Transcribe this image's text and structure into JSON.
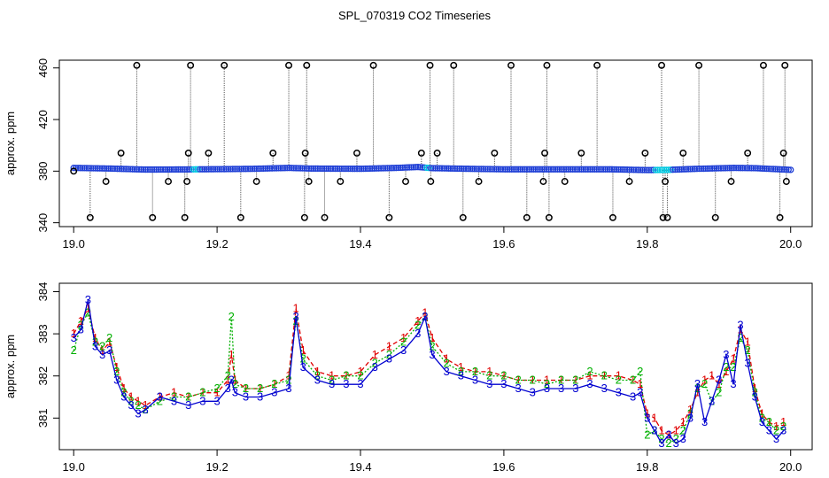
{
  "title": "SPL_070319  CO2 Timeseries",
  "colors": {
    "raw_points": "#1f3fd6",
    "flagged_points": "#00c8e0",
    "spikes": "#000000",
    "series1": "#e00000",
    "series2": "#00b000",
    "series3": "#0000d0"
  },
  "chart_data": [
    {
      "type": "scatter",
      "panel": "top",
      "title": "SPL_070319  CO2 Timeseries",
      "xlabel": "",
      "ylabel": "approx. ppm",
      "xlim": [
        18.98,
        20.03
      ],
      "ylim": [
        337,
        466
      ],
      "x_ticks": [
        "19.0",
        "19.2",
        "19.4",
        "19.6",
        "19.8",
        "20.0"
      ],
      "y_ticks": [
        "340",
        "380",
        "420",
        "460"
      ],
      "baseline_x": [
        19.0,
        19.05,
        19.1,
        19.15,
        19.2,
        19.25,
        19.3,
        19.33,
        19.4,
        19.45,
        19.48,
        19.5,
        19.55,
        19.6,
        19.65,
        19.7,
        19.75,
        19.8,
        19.83,
        19.87,
        19.92,
        19.95,
        20.0
      ],
      "baseline_y": [
        382.5,
        382,
        381.2,
        381.3,
        381.5,
        381.8,
        382.5,
        382,
        381.8,
        382.5,
        383.2,
        382.3,
        381.8,
        381.4,
        381.4,
        381.4,
        381.4,
        380.8,
        381.0,
        381.8,
        382.5,
        382.3,
        381.0
      ],
      "spikes_x": [
        19.0,
        19.023,
        19.045,
        19.066,
        19.088,
        19.11,
        19.132,
        19.155,
        19.158,
        19.16,
        19.163,
        19.188,
        19.21,
        19.233,
        19.255,
        19.278,
        19.3,
        19.322,
        19.323,
        19.325,
        19.328,
        19.35,
        19.372,
        19.395,
        19.418,
        19.44,
        19.463,
        19.485,
        19.497,
        19.498,
        19.507,
        19.53,
        19.543,
        19.565,
        19.587,
        19.61,
        19.632,
        19.655,
        19.657,
        19.66,
        19.663,
        19.685,
        19.708,
        19.73,
        19.752,
        19.775,
        19.797,
        19.82,
        19.822,
        19.825,
        19.828,
        19.85,
        19.872,
        19.895,
        19.917,
        19.94,
        19.962,
        19.985,
        19.99,
        19.992,
        19.994
      ],
      "spikes_y": [
        380,
        344,
        372,
        394,
        462,
        344,
        372,
        344,
        372,
        394,
        462,
        394,
        462,
        344,
        372,
        394,
        462,
        344,
        394,
        462,
        372,
        344,
        372,
        394,
        462,
        344,
        372,
        394,
        462,
        372,
        394,
        462,
        344,
        372,
        394,
        462,
        344,
        372,
        394,
        462,
        344,
        372,
        394,
        462,
        344,
        372,
        394,
        462,
        344,
        372,
        344,
        394,
        462,
        344,
        372,
        394,
        462,
        344,
        394,
        462,
        372
      ]
    },
    {
      "type": "line",
      "panel": "bottom",
      "title": "",
      "xlabel": "",
      "ylabel": "approx. ppm",
      "xlim": [
        18.98,
        20.03
      ],
      "ylim": [
        380.25,
        384.2
      ],
      "x_ticks": [
        "19.0",
        "19.2",
        "19.4",
        "19.6",
        "19.8",
        "20.0"
      ],
      "y_ticks": [
        "381",
        "382",
        "383",
        "384"
      ],
      "series": [
        {
          "name": "1",
          "marker": "1",
          "x": [
            19.0,
            19.01,
            19.02,
            19.03,
            19.04,
            19.05,
            19.06,
            19.07,
            19.08,
            19.09,
            19.1,
            19.12,
            19.14,
            19.16,
            19.18,
            19.2,
            19.215,
            19.22,
            19.225,
            19.24,
            19.26,
            19.28,
            19.3,
            19.31,
            19.32,
            19.34,
            19.36,
            19.38,
            19.4,
            19.42,
            19.44,
            19.46,
            19.48,
            19.49,
            19.5,
            19.52,
            19.54,
            19.56,
            19.58,
            19.6,
            19.62,
            19.64,
            19.66,
            19.68,
            19.7,
            19.72,
            19.74,
            19.76,
            19.78,
            19.79,
            19.8,
            19.81,
            19.82,
            19.83,
            19.84,
            19.85,
            19.86,
            19.87,
            19.88,
            19.89,
            19.9,
            19.91,
            19.92,
            19.93,
            19.94,
            19.95,
            19.96,
            19.97,
            19.98,
            19.99
          ],
          "y": [
            383.0,
            383.3,
            383.6,
            382.9,
            382.6,
            382.8,
            382.2,
            381.7,
            381.5,
            381.4,
            381.3,
            381.5,
            381.6,
            381.5,
            381.6,
            381.6,
            381.9,
            382.5,
            381.9,
            381.7,
            381.7,
            381.8,
            382.0,
            383.6,
            382.6,
            382.1,
            382.0,
            382.0,
            382.1,
            382.5,
            382.7,
            382.9,
            383.3,
            383.5,
            382.9,
            382.4,
            382.2,
            382.1,
            382.1,
            382.0,
            381.9,
            381.9,
            381.9,
            381.9,
            381.9,
            382.0,
            382.0,
            382.0,
            381.9,
            381.8,
            381.1,
            381.0,
            380.7,
            380.6,
            380.7,
            380.9,
            381.2,
            381.6,
            381.9,
            382.0,
            381.8,
            382.1,
            382.4,
            383.1,
            382.8,
            381.7,
            381.1,
            380.9,
            380.8,
            380.9
          ]
        },
        {
          "name": "2",
          "marker": "2",
          "x": [
            19.0,
            19.01,
            19.02,
            19.03,
            19.04,
            19.05,
            19.06,
            19.07,
            19.08,
            19.09,
            19.1,
            19.12,
            19.14,
            19.16,
            19.18,
            19.2,
            19.215,
            19.22,
            19.225,
            19.24,
            19.26,
            19.28,
            19.3,
            19.31,
            19.32,
            19.34,
            19.36,
            19.38,
            19.4,
            19.42,
            19.44,
            19.46,
            19.48,
            19.49,
            19.5,
            19.52,
            19.54,
            19.56,
            19.58,
            19.6,
            19.62,
            19.64,
            19.66,
            19.68,
            19.7,
            19.72,
            19.74,
            19.76,
            19.78,
            19.79,
            19.8,
            19.81,
            19.82,
            19.83,
            19.84,
            19.85,
            19.86,
            19.87,
            19.88,
            19.89,
            19.9,
            19.91,
            19.92,
            19.93,
            19.94,
            19.95,
            19.96,
            19.97,
            19.98,
            19.99
          ],
          "y": [
            382.6,
            383.2,
            383.5,
            382.8,
            382.7,
            382.9,
            382.1,
            381.6,
            381.4,
            381.3,
            381.2,
            381.4,
            381.5,
            381.5,
            381.6,
            381.7,
            382.0,
            383.4,
            381.8,
            381.7,
            381.7,
            381.8,
            381.9,
            383.3,
            382.4,
            382.0,
            381.9,
            382.0,
            382.0,
            382.3,
            382.5,
            382.8,
            383.2,
            383.4,
            382.7,
            382.3,
            382.1,
            382.1,
            382.0,
            382.0,
            381.9,
            381.9,
            381.8,
            381.9,
            381.9,
            382.1,
            382.0,
            381.9,
            381.9,
            382.1,
            380.6,
            380.7,
            380.5,
            380.4,
            380.5,
            380.7,
            381.1,
            381.7,
            381.8,
            381.4,
            381.6,
            382.2,
            382.2,
            382.9,
            382.6,
            381.6,
            381.0,
            380.9,
            380.7,
            380.8
          ]
        },
        {
          "name": "3",
          "marker": "3",
          "x": [
            19.0,
            19.01,
            19.02,
            19.03,
            19.04,
            19.05,
            19.06,
            19.07,
            19.08,
            19.09,
            19.1,
            19.12,
            19.14,
            19.16,
            19.18,
            19.2,
            19.215,
            19.22,
            19.225,
            19.24,
            19.26,
            19.28,
            19.3,
            19.31,
            19.32,
            19.34,
            19.36,
            19.38,
            19.4,
            19.42,
            19.44,
            19.46,
            19.48,
            19.49,
            19.5,
            19.52,
            19.54,
            19.56,
            19.58,
            19.6,
            19.62,
            19.64,
            19.66,
            19.68,
            19.7,
            19.72,
            19.74,
            19.76,
            19.78,
            19.79,
            19.8,
            19.81,
            19.82,
            19.83,
            19.84,
            19.85,
            19.86,
            19.87,
            19.88,
            19.89,
            19.9,
            19.91,
            19.92,
            19.93,
            19.94,
            19.95,
            19.96,
            19.97,
            19.98,
            19.99
          ],
          "y": [
            382.9,
            383.1,
            383.8,
            382.7,
            382.5,
            382.6,
            381.9,
            381.5,
            381.3,
            381.1,
            381.2,
            381.5,
            381.4,
            381.3,
            381.4,
            381.4,
            381.7,
            381.9,
            381.6,
            381.5,
            381.5,
            381.6,
            381.7,
            383.4,
            382.2,
            381.9,
            381.8,
            381.8,
            381.8,
            382.2,
            382.4,
            382.6,
            383.0,
            383.4,
            382.5,
            382.1,
            382.0,
            381.9,
            381.8,
            381.8,
            381.7,
            381.6,
            381.7,
            381.7,
            381.7,
            381.8,
            381.7,
            381.6,
            381.5,
            381.6,
            381.0,
            380.7,
            380.4,
            380.6,
            380.4,
            380.5,
            381.0,
            381.8,
            380.9,
            381.4,
            381.9,
            382.5,
            381.8,
            383.2,
            382.3,
            381.5,
            380.9,
            380.7,
            380.5,
            380.7
          ]
        }
      ]
    }
  ]
}
